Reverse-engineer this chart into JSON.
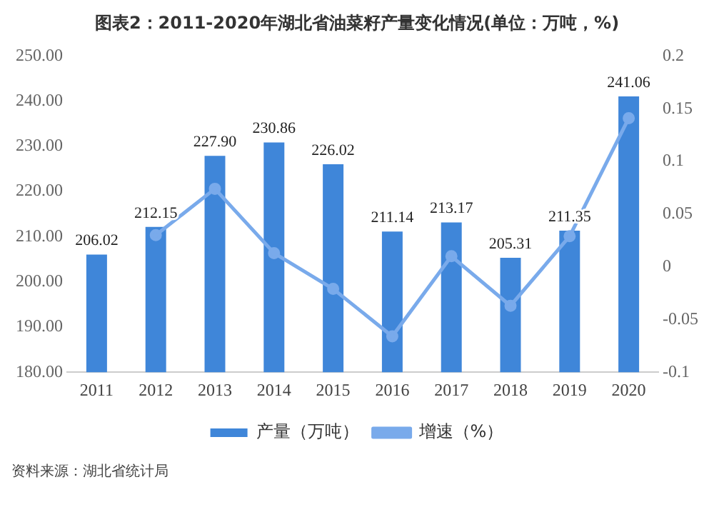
{
  "chart_data": {
    "type": "bar",
    "title": "图表2：2011-2020年湖北省油菜籽产量变化情况(单位：万吨，%)",
    "categories": [
      "2011",
      "2012",
      "2013",
      "2014",
      "2015",
      "2016",
      "2017",
      "2018",
      "2019",
      "2020"
    ],
    "series": [
      {
        "name": "产量（万吨）",
        "color": "#3f86d9",
        "values": [
          206.02,
          212.15,
          227.9,
          230.86,
          226.02,
          211.14,
          213.17,
          205.31,
          211.35,
          241.06
        ],
        "value_labels": [
          "206.02",
          "212.15",
          "227.90",
          "230.86",
          "226.02",
          "211.14",
          "213.17",
          "205.31",
          "211.35",
          "241.06"
        ]
      },
      {
        "name": "增速（%）",
        "type": "line",
        "axis": "y2",
        "color": "#79aaeb",
        "marker": "circle",
        "values": [
          null,
          0.03,
          0.074,
          0.013,
          -0.021,
          -0.066,
          0.01,
          -0.037,
          0.029,
          0.141
        ]
      }
    ],
    "ylim": [
      180,
      250
    ],
    "yticks": [
      {
        "value": 180,
        "label": "180.00"
      },
      {
        "value": 190,
        "label": "190.00"
      },
      {
        "value": 200,
        "label": "200.00"
      },
      {
        "value": 210,
        "label": "210.00"
      },
      {
        "value": 220,
        "label": "220.00"
      },
      {
        "value": 230,
        "label": "230.00"
      },
      {
        "value": 240,
        "label": "240.00"
      },
      {
        "value": 250,
        "label": "250.00"
      }
    ],
    "y2lim": [
      -0.1,
      0.2
    ],
    "y2ticks": [
      -0.1,
      -0.05,
      0,
      0.05,
      0.1,
      0.15,
      0.2
    ],
    "legend": "bottom",
    "grid": false,
    "annotations": [
      "资料来源：湖北省统计局"
    ]
  }
}
